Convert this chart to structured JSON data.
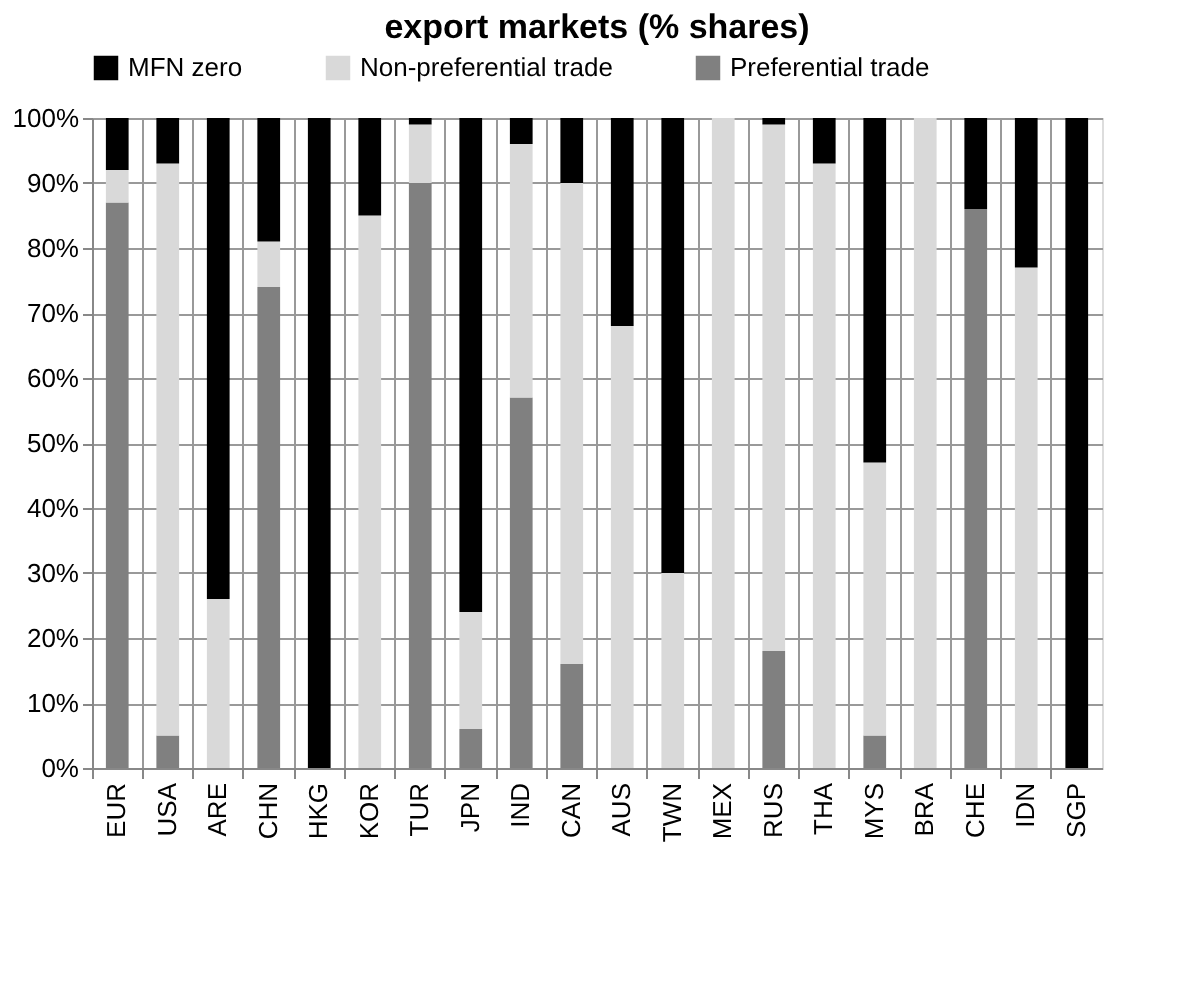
{
  "chart_data": {
    "type": "bar",
    "title": "export markets (% shares)",
    "stacked": true,
    "grid": true,
    "legend": "top",
    "categories": [
      "EUR",
      "USA",
      "ARE",
      "CHN",
      "HKG",
      "KOR",
      "TUR",
      "JPN",
      "IND",
      "CAN",
      "AUS",
      "TWN",
      "MEX",
      "RUS",
      "THA",
      "MYS",
      "BRA",
      "CHE",
      "IDN",
      "SGP"
    ],
    "series": [
      {
        "name": "Preferential trade",
        "color": "#808080",
        "values": [
          87,
          5,
          0,
          74,
          0,
          0,
          90,
          6,
          57,
          16,
          0,
          0,
          0,
          18,
          0,
          5,
          0,
          86,
          0,
          0
        ]
      },
      {
        "name": "Non-preferential trade",
        "color": "#d9d9d9",
        "values": [
          5,
          88,
          26,
          7,
          0,
          85,
          9,
          18,
          39,
          74,
          68,
          30,
          100,
          81,
          93,
          42,
          100,
          0,
          77,
          0
        ]
      },
      {
        "name": "MFN zero",
        "color": "#000000",
        "values": [
          8,
          7,
          74,
          19,
          100,
          15,
          1,
          76,
          4,
          10,
          32,
          70,
          0,
          1,
          7,
          53,
          0,
          14,
          23,
          100
        ]
      }
    ],
    "ylim": [
      0,
      100
    ],
    "yticks": [
      {
        "value": 0,
        "label": "0%"
      },
      {
        "value": 10,
        "label": "10%"
      },
      {
        "value": 20,
        "label": "20%"
      },
      {
        "value": 30,
        "label": "30%"
      },
      {
        "value": 40,
        "label": "40%"
      },
      {
        "value": 50,
        "label": "50%"
      },
      {
        "value": 60,
        "label": "60%"
      },
      {
        "value": 70,
        "label": "70%"
      },
      {
        "value": 80,
        "label": "80%"
      },
      {
        "value": 90,
        "label": "90%"
      },
      {
        "value": 100,
        "label": "100%"
      }
    ]
  }
}
